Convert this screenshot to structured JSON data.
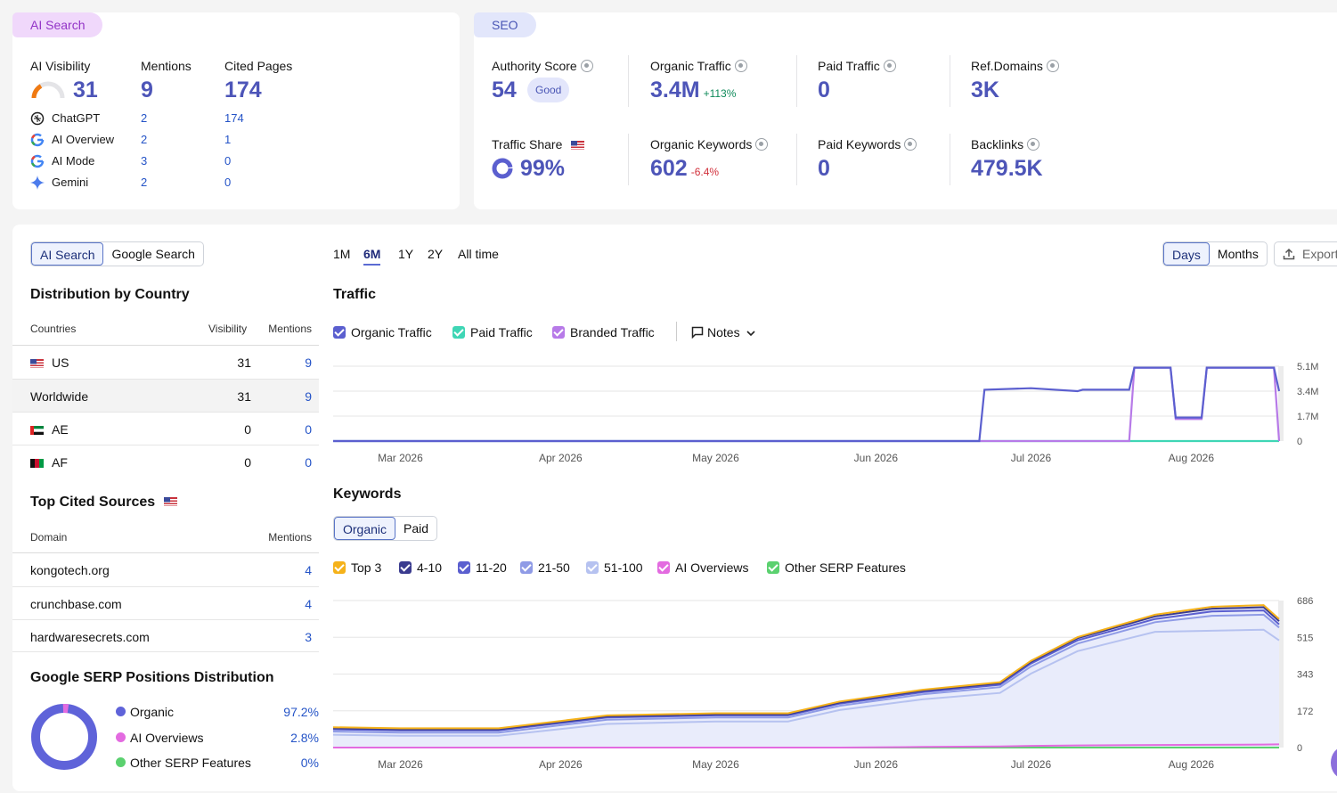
{
  "ai_card": {
    "tag": "AI Search",
    "visibility": {
      "label": "AI Visibility",
      "value": "31",
      "gauge_fraction": 0.31
    },
    "mentions": {
      "label": "Mentions",
      "value": "9"
    },
    "cited": {
      "label": "Cited Pages",
      "value": "174"
    },
    "engines": [
      {
        "name": "ChatGPT",
        "mentions": "2",
        "cited": "174",
        "icon": "chatgpt-icon"
      },
      {
        "name": "AI Overview",
        "mentions": "2",
        "cited": "1",
        "icon": "google-icon"
      },
      {
        "name": "AI Mode",
        "mentions": "3",
        "cited": "0",
        "icon": "google-icon"
      },
      {
        "name": "Gemini",
        "mentions": "2",
        "cited": "0",
        "icon": "gemini-icon"
      }
    ]
  },
  "seo_card": {
    "tag": "SEO",
    "authority": {
      "label": "Authority Score",
      "value": "54",
      "badge": "Good"
    },
    "organic_traffic": {
      "label": "Organic Traffic",
      "value": "3.4M",
      "delta": "+113%"
    },
    "paid_traffic": {
      "label": "Paid Traffic",
      "value": "0"
    },
    "ref_domains": {
      "label": "Ref.Domains",
      "value": "3K"
    },
    "traffic_share": {
      "label": "Traffic Share",
      "value": "99%",
      "fraction": 0.99
    },
    "organic_keywords": {
      "label": "Organic Keywords",
      "value": "602",
      "delta": "-6.4%"
    },
    "paid_keywords": {
      "label": "Paid Keywords",
      "value": "0"
    },
    "backlinks": {
      "label": "Backlinks",
      "value": "479.5K"
    }
  },
  "left": {
    "tabs": [
      "AI Search",
      "Google Search"
    ],
    "distribution_title": "Distribution by Country",
    "country_headers": [
      "Countries",
      "Visibility",
      "Mentions"
    ],
    "countries": [
      {
        "name": "US",
        "visibility": "31",
        "mentions": "9",
        "flag": "us-flag"
      },
      {
        "name": "Worldwide",
        "visibility": "31",
        "mentions": "9",
        "flag": ""
      },
      {
        "name": "AE",
        "visibility": "0",
        "mentions": "0",
        "flag": "ae-flag"
      },
      {
        "name": "AF",
        "visibility": "0",
        "mentions": "0",
        "flag": "af-flag"
      }
    ],
    "sources_title": "Top Cited Sources",
    "source_headers": [
      "Domain",
      "Mentions"
    ],
    "sources": [
      {
        "domain": "kongotech.org",
        "mentions": "4"
      },
      {
        "domain": "crunchbase.com",
        "mentions": "4"
      },
      {
        "domain": "hardwaresecrets.com",
        "mentions": "3"
      }
    ],
    "serp_title": "Google SERP Positions Distribution",
    "serp": [
      {
        "name": "Organic",
        "value": "97.2%",
        "color": "#5f63d9"
      },
      {
        "name": "AI Overviews",
        "value": "2.8%",
        "color": "#e36be0"
      },
      {
        "name": "Other SERP Features",
        "value": "0%",
        "color": "#5bd16f"
      }
    ]
  },
  "controls": {
    "periods": [
      "1M",
      "6M",
      "1Y",
      "2Y",
      "All time"
    ],
    "active_period": "6M",
    "granularity": [
      "Days",
      "Months"
    ],
    "export": "Export"
  },
  "traffic": {
    "title": "Traffic",
    "legend": [
      {
        "name": "Organic Traffic",
        "color": "#5b5fcf"
      },
      {
        "name": "Paid Traffic",
        "color": "#3fd6b5"
      },
      {
        "name": "Branded Traffic",
        "color": "#b77ae8"
      }
    ],
    "notes": "Notes"
  },
  "keywords": {
    "title": "Keywords",
    "tabs": [
      "Organic",
      "Paid"
    ],
    "legend": [
      {
        "name": "Top 3",
        "color": "#f5b21a"
      },
      {
        "name": "4-10",
        "color": "#3a3b8f"
      },
      {
        "name": "11-20",
        "color": "#5b5fcf"
      },
      {
        "name": "21-50",
        "color": "#8f9be6"
      },
      {
        "name": "51-100",
        "color": "#b6c2f0"
      },
      {
        "name": "AI Overviews",
        "color": "#e36be0"
      },
      {
        "name": "Other SERP Features",
        "color": "#5bd16f"
      }
    ]
  },
  "chart_data": [
    {
      "type": "line",
      "title": "Traffic",
      "x_ticks": [
        "Mar 2026",
        "Apr 2026",
        "May 2026",
        "Jun 2026",
        "Jul 2026",
        "Aug 2026"
      ],
      "y_ticks": [
        "5.1M",
        "3.4M",
        "1.7M",
        "0"
      ],
      "ylim": [
        0,
        5100000
      ],
      "x": [
        "2026-02-16",
        "2026-06-21",
        "2026-06-22",
        "2026-07-01",
        "2026-07-10",
        "2026-07-11",
        "2026-07-20",
        "2026-07-21",
        "2026-07-22",
        "2026-07-28",
        "2026-07-29",
        "2026-08-03",
        "2026-08-04",
        "2026-08-17",
        "2026-08-18"
      ],
      "series": [
        {
          "name": "Organic Traffic",
          "color": "#5b5fcf",
          "values": [
            0,
            0,
            3500000,
            3600000,
            3400000,
            3500000,
            3500000,
            5000000,
            5000000,
            5000000,
            1600000,
            1600000,
            5000000,
            5000000,
            3400000
          ]
        },
        {
          "name": "Branded Traffic",
          "color": "#b77ae8",
          "values": [
            0,
            0,
            0,
            0,
            0,
            0,
            0,
            5000000,
            5000000,
            5000000,
            1500000,
            1500000,
            5000000,
            5000000,
            0
          ]
        },
        {
          "name": "Paid Traffic",
          "color": "#3fd6b5",
          "values": [
            0,
            0,
            0,
            0,
            0,
            0,
            0,
            0,
            0,
            0,
            0,
            0,
            0,
            0,
            0
          ]
        }
      ]
    },
    {
      "type": "area",
      "title": "Keywords",
      "x_ticks": [
        "Mar 2026",
        "Apr 2026",
        "May 2026",
        "Jun 2026",
        "Jul 2026",
        "Aug 2026"
      ],
      "y_ticks": [
        "686",
        "515",
        "343",
        "172",
        "0"
      ],
      "ylim": [
        0,
        686
      ],
      "x": [
        "2026-02-16",
        "2026-03-01",
        "2026-03-20",
        "2026-04-10",
        "2026-05-01",
        "2026-05-15",
        "2026-05-25",
        "2026-06-10",
        "2026-06-25",
        "2026-07-01",
        "2026-07-10",
        "2026-07-25",
        "2026-08-05",
        "2026-08-15",
        "2026-08-18"
      ],
      "series": [
        {
          "name": "Top 3",
          "color": "#f5b21a",
          "values": [
            95,
            90,
            90,
            150,
            160,
            160,
            215,
            270,
            305,
            405,
            515,
            620,
            657,
            665,
            600
          ]
        },
        {
          "name": "4-10",
          "color": "#3a3b8f",
          "values": [
            90,
            85,
            85,
            145,
            155,
            155,
            210,
            265,
            300,
            400,
            510,
            612,
            648,
            655,
            590
          ]
        },
        {
          "name": "11-20",
          "color": "#5b5fcf",
          "values": [
            85,
            80,
            80,
            140,
            150,
            150,
            205,
            258,
            293,
            392,
            500,
            600,
            635,
            640,
            575
          ]
        },
        {
          "name": "21-50",
          "color": "#8f9be6",
          "values": [
            75,
            70,
            70,
            130,
            140,
            140,
            195,
            248,
            282,
            378,
            485,
            585,
            615,
            620,
            560
          ]
        },
        {
          "name": "51-100",
          "color": "#b6c2f0",
          "values": [
            60,
            55,
            55,
            110,
            122,
            122,
            175,
            225,
            255,
            345,
            450,
            540,
            545,
            550,
            500
          ]
        },
        {
          "name": "AI Overviews",
          "color": "#e36be0",
          "values": [
            0,
            0,
            0,
            0,
            0,
            0,
            0,
            3,
            5,
            8,
            10,
            12,
            13,
            14,
            15
          ]
        },
        {
          "name": "Other SERP Features",
          "color": "#5bd16f",
          "values": [
            0,
            0,
            0,
            0,
            0,
            0,
            0,
            0,
            0,
            0,
            0,
            0,
            0,
            0,
            0
          ]
        }
      ]
    }
  ]
}
